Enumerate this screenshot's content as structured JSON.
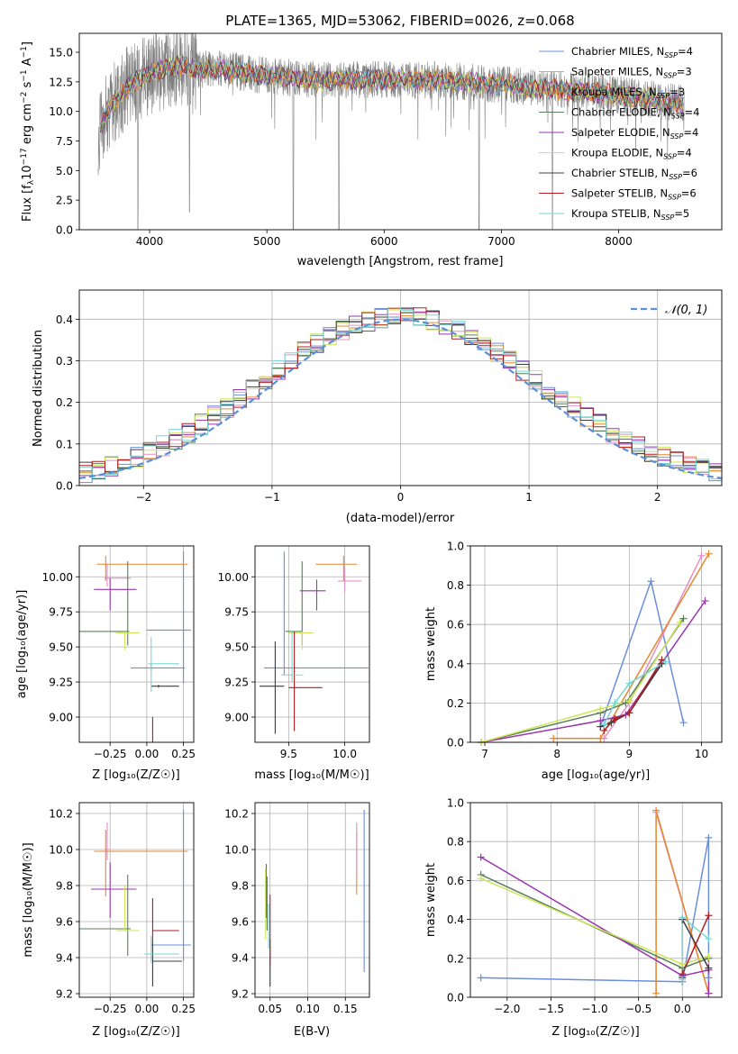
{
  "colors": {
    "Chabrier MILES": "#6a8fdc",
    "Salpeter MILES": "#e78fc4",
    "Kroupa MILES": "#e6872f",
    "Chabrier ELODIE": "#5a7f5a",
    "Salpeter ELODIE": "#9b35b0",
    "Kroupa ELODIE": "#cde65a",
    "Chabrier STELIB": "#3c3c3c",
    "Salpeter STELIB": "#b01e23",
    "Kroupa STELIB": "#79d6d2",
    "gaussian": "#5b8fd8",
    "data": "#808080"
  },
  "chart_data": [
    {
      "id": "spectrum",
      "type": "line",
      "title": "PLATE=1365, MJD=53062, FIBERID=0026, z=0.068",
      "xlabel": "wavelength [Angstrom, rest frame]",
      "ylabel_parts": [
        "Flux [f",
        "λ",
        "10",
        "−17",
        " erg cm",
        "−2",
        " s",
        "−1",
        " A",
        "−1",
        "]"
      ],
      "xlim": [
        3400,
        8880
      ],
      "ylim": [
        0,
        16.6
      ],
      "xticks": [
        4000,
        5000,
        6000,
        7000,
        8000
      ],
      "yticks": [
        0.0,
        2.5,
        5.0,
        7.5,
        10.0,
        12.5,
        15.0
      ],
      "data_coverage": [
        3560,
        8560
      ],
      "continuum": [
        [
          3560,
          8.0
        ],
        [
          3640,
          10.0
        ],
        [
          3800,
          12.0
        ],
        [
          3950,
          13.0
        ],
        [
          4100,
          13.5
        ],
        [
          4250,
          14.0
        ],
        [
          4400,
          13.5
        ],
        [
          4600,
          13.6
        ],
        [
          5000,
          13.0
        ],
        [
          5500,
          12.6
        ],
        [
          6000,
          12.7
        ],
        [
          6500,
          12.6
        ],
        [
          7000,
          12.3
        ],
        [
          7300,
          12.0
        ],
        [
          7600,
          11.8
        ],
        [
          8000,
          11.4
        ],
        [
          8300,
          11.0
        ],
        [
          8560,
          10.6
        ]
      ],
      "dips": [
        [
          3900,
          0.0
        ],
        [
          4340,
          1.5
        ],
        [
          5225,
          0.0
        ],
        [
          5615,
          0.0
        ],
        [
          6810,
          0.0
        ],
        [
          7435,
          0.0
        ]
      ],
      "legend": [
        {
          "label": "Chabrier MILES, N",
          "sub": "SSP",
          "suffix": "=4"
        },
        {
          "label": "Salpeter MILES, N",
          "sub": "SSP",
          "suffix": "=3"
        },
        {
          "label": "Kroupa MILES, N",
          "sub": "SSP",
          "suffix": "=3"
        },
        {
          "label": "Chabrier ELODIE, N",
          "sub": "SSP",
          "suffix": "=4"
        },
        {
          "label": "Salpeter ELODIE, N",
          "sub": "SSP",
          "suffix": "=4"
        },
        {
          "label": "Kroupa ELODIE, N",
          "sub": "SSP",
          "suffix": "=4"
        },
        {
          "label": "Chabrier STELIB, N",
          "sub": "SSP",
          "suffix": "=6"
        },
        {
          "label": "Salpeter STELIB, N",
          "sub": "SSP",
          "suffix": "=6"
        },
        {
          "label": "Kroupa STELIB, N",
          "sub": "SSP",
          "suffix": "=5"
        }
      ]
    },
    {
      "id": "residuals",
      "type": "line",
      "xlabel": "(data-model)/error",
      "ylabel": "Normed distribution",
      "xlim": [
        -2.5,
        2.5
      ],
      "ylim": [
        0,
        0.47
      ],
      "xticks": [
        -2,
        -1,
        0,
        1,
        2
      ],
      "yticks": [
        0.0,
        0.1,
        0.2,
        0.3,
        0.4
      ],
      "bin_width": 0.1,
      "legend": "𝒩(0, 1)"
    },
    {
      "id": "age-vs-Z",
      "type": "scatter",
      "xlabel": "Z [log₁₀(Z/Z☉)]",
      "ylabel": "age  [log₁₀(age/yr)]",
      "xlim": [
        -0.46,
        0.32
      ],
      "ylim": [
        8.82,
        10.22
      ],
      "xticks": [
        -0.25,
        0.0,
        0.25
      ],
      "yticks": [
        9.0,
        9.25,
        9.5,
        9.75,
        10.0
      ],
      "points": [
        {
          "model": "Chabrier MILES",
          "x": 0.25,
          "xerr": [
            0.25,
            0.05
          ],
          "y": 9.62,
          "yerr": [
            0.38,
            0.56
          ]
        },
        {
          "model": "Chabrier MILES",
          "x": 0.03,
          "xerr": [
            0.14,
            0.23
          ],
          "y": 9.35,
          "yerr": [
            0.02,
            0.02
          ]
        },
        {
          "model": "Salpeter MILES",
          "x": -0.27,
          "xerr": [
            0.02,
            0.16
          ],
          "y": 9.99,
          "yerr": [
            0.06,
            0.1
          ]
        },
        {
          "model": "Kroupa MILES",
          "x": -0.28,
          "xerr": [
            0.06,
            0.56
          ],
          "y": 10.09,
          "yerr": [
            0.12,
            0.06
          ]
        },
        {
          "model": "Chabrier ELODIE",
          "x": -0.13,
          "xerr": [
            0.34,
            0.01
          ],
          "y": 9.61,
          "yerr": [
            0.1,
            0.5
          ]
        },
        {
          "model": "Salpeter ELODIE",
          "x": -0.25,
          "xerr": [
            0.11,
            0.18
          ],
          "y": 9.91,
          "yerr": [
            0.15,
            0.08
          ]
        },
        {
          "model": "Kroupa ELODIE",
          "x": -0.15,
          "xerr": [
            0.06,
            0.1
          ],
          "y": 9.6,
          "yerr": [
            0.12,
            0.01
          ]
        },
        {
          "model": "Chabrier STELIB",
          "x": 0.08,
          "xerr": [
            0.05,
            0.14
          ],
          "y": 9.22,
          "yerr": [
            0.01,
            0.01
          ]
        },
        {
          "model": "Salpeter STELIB",
          "x": 0.04,
          "xerr": [
            0.0,
            0.0
          ],
          "y": 8.92,
          "yerr": [
            0.1,
            0.08
          ]
        },
        {
          "model": "Kroupa STELIB",
          "x": 0.03,
          "xerr": [
            0.02,
            0.19
          ],
          "y": 9.38,
          "yerr": [
            0.2,
            0.19
          ]
        }
      ]
    },
    {
      "id": "age-vs-mass",
      "type": "scatter",
      "xlabel": "mass [log₁₀(M/M☉)]",
      "xlim": [
        9.2,
        10.22
      ],
      "ylim": [
        8.82,
        10.22
      ],
      "xticks": [
        9.5,
        10.0
      ],
      "yticks": [
        9.0,
        9.25,
        9.5,
        9.75,
        10.0
      ],
      "points": [
        {
          "model": "Chabrier MILES",
          "x": 9.46,
          "xerr": [
            0.18,
            0.75
          ],
          "y": 9.35,
          "yerr": [
            0.05,
            0.83
          ]
        },
        {
          "model": "Salpeter MILES",
          "x": 10.0,
          "xerr": [
            0.06,
            0.15
          ],
          "y": 9.97,
          "yerr": [
            0.08,
            0.1
          ]
        },
        {
          "model": "Kroupa MILES",
          "x": 9.99,
          "xerr": [
            0.25,
            0.12
          ],
          "y": 10.09,
          "yerr": [
            0.12,
            0.06
          ]
        },
        {
          "model": "Chabrier ELODIE",
          "x": 9.62,
          "xerr": [
            0.15,
            0.0
          ],
          "y": 9.61,
          "yerr": [
            0.1,
            0.5
          ]
        },
        {
          "model": "Salpeter ELODIE",
          "x": 9.75,
          "xerr": [
            0.15,
            0.08
          ],
          "y": 9.9,
          "yerr": [
            0.14,
            0.08
          ]
        },
        {
          "model": "Kroupa ELODIE",
          "x": 9.62,
          "xerr": [
            0.12,
            0.1
          ],
          "y": 9.6,
          "yerr": [
            0.12,
            0.01
          ]
        },
        {
          "model": "Chabrier STELIB",
          "x": 9.38,
          "xerr": [
            0.14,
            0.08
          ],
          "y": 9.22,
          "yerr": [
            0.34,
            0.32
          ]
        },
        {
          "model": "Salpeter STELIB",
          "x": 9.55,
          "xerr": [
            0.05,
            0.25
          ],
          "y": 9.21,
          "yerr": [
            0.31,
            0.4
          ]
        },
        {
          "model": "Kroupa STELIB",
          "x": 9.53,
          "xerr": [
            0.1,
            0.1
          ],
          "y": 9.3,
          "yerr": [
            0.05,
            0.32
          ]
        }
      ]
    },
    {
      "id": "weight-vs-age",
      "type": "line",
      "xlabel": "age  [log₁₀(age/yr)]",
      "ylabel": "mass weight",
      "xlim": [
        6.8,
        10.28
      ],
      "ylim": [
        0,
        1.0
      ],
      "xticks": [
        7,
        8,
        9,
        10
      ],
      "yticks": [
        0.0,
        0.2,
        0.4,
        0.6,
        0.8,
        1.0
      ],
      "series": [
        {
          "model": "Chabrier MILES",
          "x": [
            8.6,
            9.3,
            9.75
          ],
          "y": [
            0.08,
            0.82,
            0.1
          ]
        },
        {
          "model": "Salpeter MILES",
          "x": [
            8.65,
            9.0,
            10.0
          ],
          "y": [
            0.02,
            0.2,
            0.95
          ]
        },
        {
          "model": "Kroupa MILES",
          "x": [
            7.95,
            8.6,
            10.1
          ],
          "y": [
            0.02,
            0.02,
            0.96
          ]
        },
        {
          "model": "Chabrier ELODIE",
          "x": [
            6.95,
            8.6,
            8.95,
            9.75
          ],
          "y": [
            0.0,
            0.15,
            0.2,
            0.63
          ]
        },
        {
          "model": "Salpeter ELODIE",
          "x": [
            6.95,
            8.6,
            8.95,
            10.05
          ],
          "y": [
            0.0,
            0.11,
            0.14,
            0.72
          ]
        },
        {
          "model": "Kroupa ELODIE",
          "x": [
            6.95,
            8.6,
            9.0,
            9.7
          ],
          "y": [
            0.0,
            0.17,
            0.21,
            0.61
          ]
        },
        {
          "model": "Chabrier STELIB",
          "x": [
            8.6,
            8.75,
            9.0,
            9.45
          ],
          "y": [
            0.08,
            0.1,
            0.15,
            0.4
          ]
        },
        {
          "model": "Salpeter STELIB",
          "x": [
            8.65,
            8.8,
            9.0,
            9.45
          ],
          "y": [
            0.06,
            0.12,
            0.15,
            0.42
          ]
        },
        {
          "model": "Kroupa STELIB",
          "x": [
            8.65,
            8.8,
            9.0,
            9.5
          ],
          "y": [
            0.09,
            0.2,
            0.3,
            0.41
          ]
        }
      ]
    },
    {
      "id": "mass-vs-Z",
      "type": "scatter",
      "xlabel": "Z [log₁₀(Z/Z☉)]",
      "ylabel": "mass [log₁₀(M/M☉)]",
      "xlim": [
        -0.46,
        0.32
      ],
      "ylim": [
        9.18,
        10.26
      ],
      "xticks": [
        -0.25,
        0.0,
        0.25
      ],
      "yticks": [
        9.2,
        9.4,
        9.6,
        9.8,
        10.0,
        10.2
      ],
      "points": [
        {
          "model": "Chabrier MILES",
          "x": 0.25,
          "xerr": [
            0.22,
            0.05
          ],
          "y": 9.47,
          "yerr": [
            0.09,
            0.75
          ]
        },
        {
          "model": "Salpeter MILES",
          "x": -0.27,
          "xerr": [
            0.02,
            0.02
          ],
          "y": 10.0,
          "yerr": [
            0.06,
            0.15
          ]
        },
        {
          "model": "Kroupa MILES",
          "x": -0.28,
          "xerr": [
            0.08,
            0.56
          ],
          "y": 9.99,
          "yerr": [
            0.25,
            0.12
          ]
        },
        {
          "model": "Chabrier ELODIE",
          "x": -0.13,
          "xerr": [
            0.34,
            0.02
          ],
          "y": 9.56,
          "yerr": [
            0.15,
            0.3
          ]
        },
        {
          "model": "Salpeter ELODIE",
          "x": -0.25,
          "xerr": [
            0.13,
            0.18
          ],
          "y": 9.78,
          "yerr": [
            0.16,
            0.15
          ]
        },
        {
          "model": "Kroupa ELODIE",
          "x": -0.15,
          "xerr": [
            0.06,
            0.1
          ],
          "y": 9.55,
          "yerr": [
            0.0,
            0.25
          ]
        },
        {
          "model": "Chabrier STELIB",
          "x": 0.04,
          "xerr": [
            0.0,
            0.2
          ],
          "y": 9.38,
          "yerr": [
            0.14,
            0.1
          ]
        },
        {
          "model": "Salpeter STELIB",
          "x": 0.04,
          "xerr": [
            0.0,
            0.18
          ],
          "y": 9.55,
          "yerr": [
            0.08,
            0.18
          ]
        },
        {
          "model": "Kroupa STELIB",
          "x": 0.03,
          "xerr": [
            0.05,
            0.19
          ],
          "y": 9.42,
          "yerr": [
            0.05,
            0.1
          ]
        }
      ]
    },
    {
      "id": "mass-vs-EBV",
      "type": "scatter",
      "xlabel": "E(B-V)",
      "xlim": [
        0.03,
        0.182
      ],
      "ylim": [
        9.18,
        10.26
      ],
      "xticks": [
        0.05,
        0.1,
        0.15
      ],
      "yticks": [
        9.2,
        9.4,
        9.6,
        9.8,
        10.0,
        10.2
      ],
      "points": [
        {
          "model": "Chabrier MILES",
          "x": 0.175,
          "yerr": [
            9.32,
            10.22
          ]
        },
        {
          "model": "Kroupa MILES",
          "x": 0.165,
          "yerr": [
            9.75,
            10.1
          ]
        },
        {
          "model": "Salpeter MILES",
          "x": 0.165,
          "yerr": [
            9.85,
            10.15
          ]
        },
        {
          "model": "Chabrier ELODIE",
          "x": 0.046,
          "yerr": [
            9.55,
            9.85
          ]
        },
        {
          "model": "Salpeter ELODIE",
          "x": 0.045,
          "yerr": [
            9.62,
            9.92
          ]
        },
        {
          "model": "Kroupa ELODIE",
          "x": 0.044,
          "yerr": [
            9.5,
            9.9
          ]
        },
        {
          "model": "Chabrier STELIB",
          "x": 0.05,
          "yerr": [
            9.24,
            9.5
          ]
        },
        {
          "model": "Salpeter STELIB",
          "x": 0.05,
          "yerr": [
            9.35,
            9.75
          ]
        },
        {
          "model": "Kroupa STELIB",
          "x": 0.048,
          "yerr": [
            9.45,
            9.7
          ]
        }
      ]
    },
    {
      "id": "weight-vs-Z",
      "type": "line",
      "xlabel": "Z [log₁₀(Z/Z☉)]",
      "ylabel": "mass weight",
      "xlim": [
        -2.42,
        0.45
      ],
      "ylim": [
        0,
        1.0
      ],
      "xticks": [
        -2.0,
        -1.5,
        -1.0,
        -0.5,
        0.0
      ],
      "yticks": [
        0.0,
        0.2,
        0.4,
        0.6,
        0.8,
        1.0
      ],
      "series": [
        {
          "model": "Chabrier MILES",
          "x": [
            -2.3,
            0.0,
            0.3,
            0.3
          ],
          "y": [
            0.1,
            0.08,
            0.82,
            0.1
          ]
        },
        {
          "model": "Salpeter MILES",
          "x": [
            -0.3,
            0.3,
            0.3
          ],
          "y": [
            0.95,
            0.02,
            0.2
          ]
        },
        {
          "model": "Kroupa MILES",
          "x": [
            -0.3,
            -0.3,
            0.3,
            0.3
          ],
          "y": [
            0.02,
            0.96,
            0.02,
            0.02
          ]
        },
        {
          "model": "Chabrier ELODIE",
          "x": [
            -2.3,
            0.0,
            0.3
          ],
          "y": [
            0.63,
            0.15,
            0.2
          ]
        },
        {
          "model": "Salpeter ELODIE",
          "x": [
            -2.3,
            0.0,
            0.3,
            0.3
          ],
          "y": [
            0.72,
            0.11,
            0.14,
            0.02
          ]
        },
        {
          "model": "Kroupa ELODIE",
          "x": [
            -2.3,
            0.0,
            0.3
          ],
          "y": [
            0.61,
            0.17,
            0.21
          ]
        },
        {
          "model": "Chabrier STELIB",
          "x": [
            0.0,
            0.0,
            0.3
          ],
          "y": [
            0.1,
            0.4,
            0.15
          ]
        },
        {
          "model": "Salpeter STELIB",
          "x": [
            0.0,
            0.3
          ],
          "y": [
            0.12,
            0.42
          ]
        },
        {
          "model": "Kroupa STELIB",
          "x": [
            0.0,
            0.0,
            0.3
          ],
          "y": [
            0.09,
            0.41,
            0.3
          ]
        }
      ]
    }
  ]
}
